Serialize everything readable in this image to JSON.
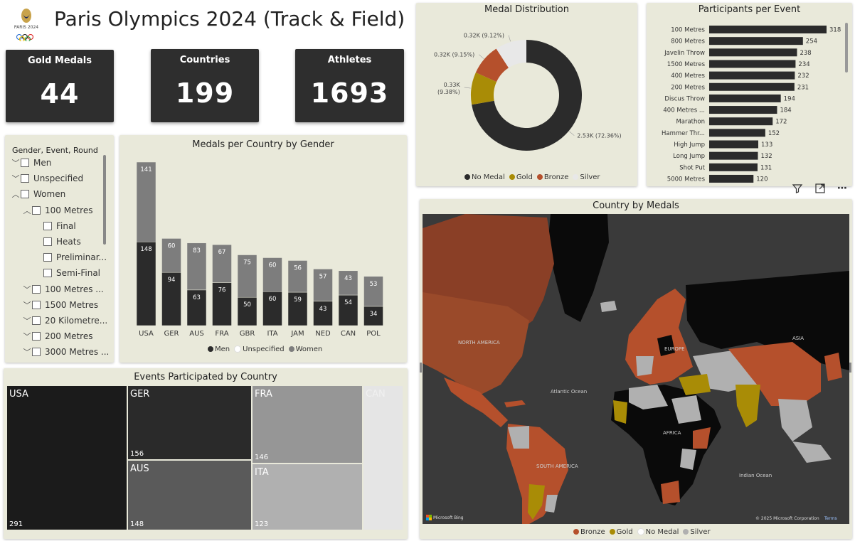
{
  "header": {
    "title": "Paris Olympics 2024 (Track & Field)",
    "logo_text": "PARIS 2024"
  },
  "kpis": [
    {
      "label": "Gold Medals",
      "value": "44"
    },
    {
      "label": "Countries",
      "value": "199"
    },
    {
      "label": "Athletes",
      "value": "1693"
    }
  ],
  "slicer": {
    "title": "Gender, Event, Round",
    "rows": [
      {
        "label": "Men",
        "level": 0,
        "chevron": "down"
      },
      {
        "label": "Unspecified",
        "level": 0,
        "chevron": "down"
      },
      {
        "label": "Women",
        "level": 0,
        "chevron": "up"
      },
      {
        "label": "100 Metres",
        "level": 1,
        "chevron": "up"
      },
      {
        "label": "Final",
        "level": 2,
        "chevron": ""
      },
      {
        "label": "Heats",
        "level": 2,
        "chevron": ""
      },
      {
        "label": "Preliminar...",
        "level": 2,
        "chevron": ""
      },
      {
        "label": "Semi-Final",
        "level": 2,
        "chevron": ""
      },
      {
        "label": "100 Metres ...",
        "level": 1,
        "chevron": "down"
      },
      {
        "label": "1500 Metres",
        "level": 1,
        "chevron": "down"
      },
      {
        "label": "20 Kilometre...",
        "level": 1,
        "chevron": "down"
      },
      {
        "label": "200 Metres",
        "level": 1,
        "chevron": "down"
      },
      {
        "label": "3000 Metres ...",
        "level": 1,
        "chevron": "down"
      }
    ]
  },
  "medal_distribution": {
    "title": "Medal Distribution",
    "legend": [
      {
        "name": "No Medal",
        "color": "#2b2b2b"
      },
      {
        "name": "Gold",
        "color": "#a98c06"
      },
      {
        "name": "Bronze",
        "color": "#b5502c"
      },
      {
        "name": "Silver",
        "color": "#e8e8e8"
      }
    ]
  },
  "participants": {
    "title": "Participants per Event"
  },
  "gender_chart": {
    "title": "Medals per Country by Gender",
    "legend": [
      {
        "name": "Men",
        "color": "#2b2b2b"
      },
      {
        "name": "Unspecified",
        "color": "#ffffff"
      },
      {
        "name": "Women",
        "color": "#7d7d7d"
      }
    ]
  },
  "treemap": {
    "title": "Events Participated by Country"
  },
  "map": {
    "title": "Country by Medals",
    "labels": [
      "NORTH AMERICA",
      "Atlantic Ocean",
      "SOUTH AMERICA",
      "ASIA",
      "Indian Ocean",
      "AFRICA",
      "EUROPE"
    ],
    "attribution": "Microsoft Bing",
    "copyright": "© 2025 Microsoft Corporation",
    "terms": "Terms",
    "legend": [
      {
        "name": "Bronze",
        "color": "#b5502c"
      },
      {
        "name": "Gold",
        "color": "#a98c06"
      },
      {
        "name": "No Medal",
        "color": "#ffffff"
      },
      {
        "name": "Silver",
        "color": "#b0b0b0"
      }
    ]
  },
  "chart_data": [
    {
      "type": "pie",
      "title": "Medal Distribution",
      "donut": true,
      "categories": [
        "No Medal",
        "Gold",
        "Bronze",
        "Silver"
      ],
      "values": [
        2530,
        330,
        320,
        320
      ],
      "data_labels": [
        "2.53K (72.36%)",
        "0.33K (9.38%)",
        "0.32K (9.15%)",
        "0.32K (9.12%)"
      ],
      "colors": [
        "#2b2b2b",
        "#a98c06",
        "#b5502c",
        "#e8e8e8"
      ]
    },
    {
      "type": "bar",
      "orientation": "horizontal",
      "title": "Participants per Event",
      "categories": [
        "100 Metres",
        "800 Metres",
        "Javelin Throw",
        "1500 Metres",
        "400 Metres",
        "200 Metres",
        "Discus Throw",
        "400 Metres ...",
        "Marathon",
        "Hammer Thr...",
        "High Jump",
        "Long Jump",
        "Shot Put",
        "5000 Metres"
      ],
      "values": [
        318,
        254,
        238,
        234,
        232,
        231,
        194,
        184,
        172,
        152,
        133,
        132,
        131,
        120
      ]
    },
    {
      "type": "bar",
      "stacked": true,
      "title": "Medals per Country by Gender",
      "categories": [
        "USA",
        "GER",
        "AUS",
        "FRA",
        "GBR",
        "ITA",
        "JAM",
        "NED",
        "CAN",
        "POL"
      ],
      "series": [
        {
          "name": "Men",
          "values": [
            148,
            94,
            63,
            76,
            50,
            60,
            59,
            43,
            54,
            34
          ]
        },
        {
          "name": "Women",
          "values": [
            141,
            60,
            83,
            67,
            75,
            60,
            56,
            57,
            43,
            53
          ]
        }
      ]
    },
    {
      "type": "heatmap",
      "subtype": "treemap",
      "title": "Events Participated by Country",
      "categories": [
        "USA",
        "GER",
        "AUS",
        "FRA",
        "ITA",
        "CAN"
      ],
      "values": [
        291,
        156,
        148,
        146,
        123,
        null
      ],
      "colors": [
        "#1b1b1b",
        "#2a2a2a",
        "#5a5a5a",
        "#969696",
        "#b0b0b0",
        "#e5e5e5"
      ]
    }
  ]
}
